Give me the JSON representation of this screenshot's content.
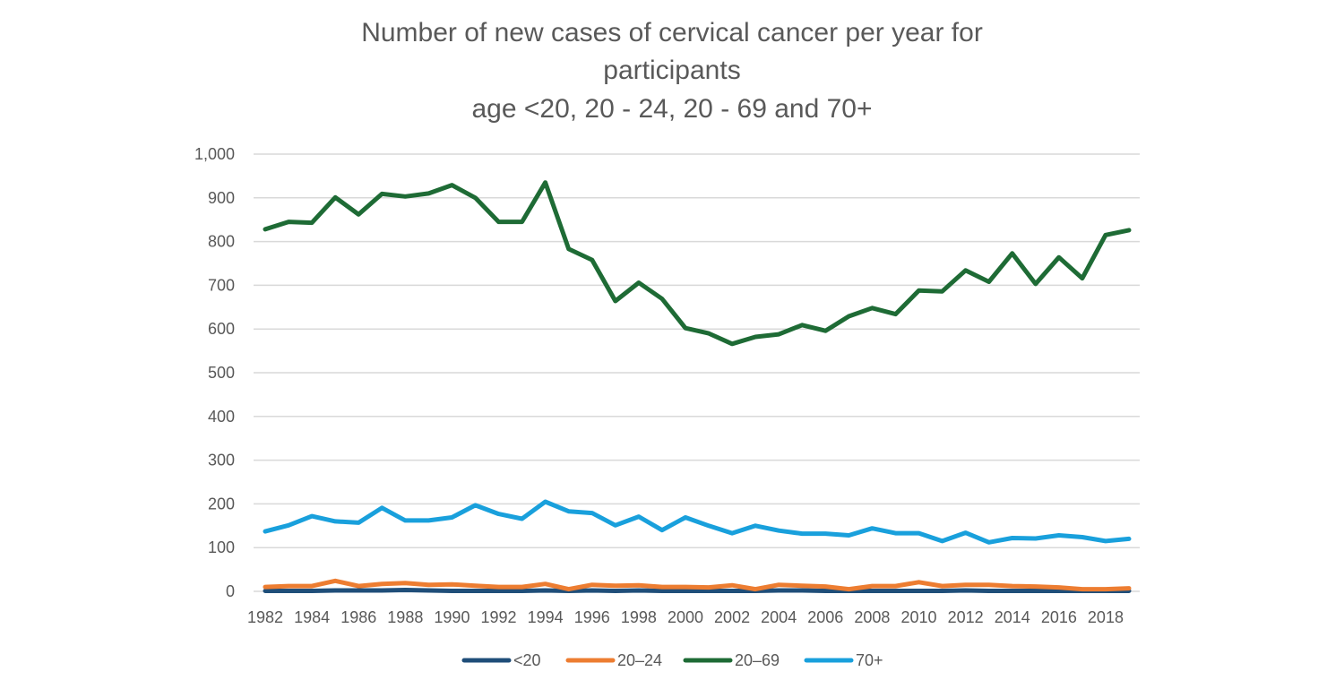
{
  "chart_data": {
    "type": "line",
    "title": [
      "Number of new cases of cervical cancer per year for",
      "participants",
      "age <20, 20 - 24, 20 - 69 and 70+"
    ],
    "x": [
      1982,
      1983,
      1984,
      1985,
      1986,
      1987,
      1988,
      1989,
      1990,
      1991,
      1992,
      1993,
      1994,
      1995,
      1996,
      1997,
      1998,
      1999,
      2000,
      2001,
      2002,
      2003,
      2004,
      2005,
      2006,
      2007,
      2008,
      2009,
      2010,
      2011,
      2012,
      2013,
      2014,
      2015,
      2016,
      2017,
      2018,
      2019
    ],
    "x_tick_labels": [
      "1982",
      "1984",
      "1986",
      "1988",
      "1990",
      "1992",
      "1994",
      "1996",
      "1998",
      "2000",
      "2002",
      "2004",
      "2006",
      "2008",
      "2010",
      "2012",
      "2014",
      "2016",
      "2018"
    ],
    "y_tick_labels": [
      "0",
      "100",
      "200",
      "300",
      "400",
      "500",
      "600",
      "700",
      "800",
      "900",
      "1,000"
    ],
    "ylim": [
      0,
      1000
    ],
    "grid": true,
    "legend_position": "bottom",
    "series": [
      {
        "name": "<20",
        "color": "#1f4e79",
        "values": [
          1,
          1,
          1,
          2,
          2,
          2,
          3,
          2,
          1,
          1,
          1,
          1,
          2,
          1,
          2,
          1,
          2,
          1,
          1,
          1,
          1,
          1,
          2,
          2,
          1,
          1,
          1,
          1,
          1,
          1,
          2,
          1,
          1,
          1,
          1,
          1,
          1,
          1
        ]
      },
      {
        "name": "20–24",
        "color": "#ed7d31",
        "values": [
          10,
          12,
          12,
          24,
          12,
          17,
          19,
          15,
          16,
          13,
          10,
          10,
          17,
          5,
          15,
          13,
          14,
          10,
          10,
          9,
          14,
          5,
          15,
          13,
          11,
          5,
          12,
          12,
          21,
          12,
          15,
          15,
          12,
          11,
          9,
          5,
          5,
          7
        ]
      },
      {
        "name": "20–69",
        "color": "#1e6b35",
        "values": [
          828,
          845,
          843,
          901,
          862,
          909,
          903,
          910,
          929,
          900,
          845,
          845,
          935,
          783,
          758,
          664,
          706,
          669,
          602,
          590,
          566,
          582,
          588,
          609,
          596,
          629,
          648,
          634,
          688,
          686,
          734,
          708,
          773,
          703,
          764,
          716,
          815,
          826
        ]
      },
      {
        "name": "70+",
        "color": "#19a0dc",
        "values": [
          137,
          151,
          172,
          160,
          157,
          191,
          162,
          162,
          169,
          197,
          177,
          166,
          205,
          183,
          179,
          151,
          171,
          140,
          169,
          150,
          133,
          150,
          139,
          132,
          132,
          128,
          144,
          133,
          133,
          115,
          134,
          112,
          122,
          121,
          128,
          124,
          115,
          120
        ]
      }
    ]
  }
}
